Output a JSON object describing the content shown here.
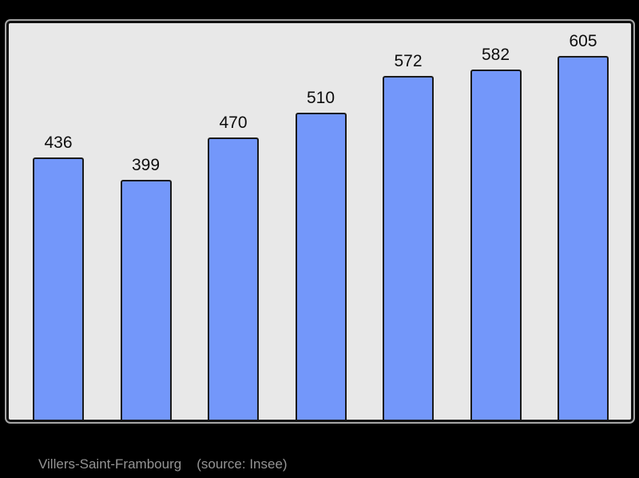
{
  "chart_data": {
    "type": "bar",
    "values": [
      436,
      399,
      470,
      510,
      572,
      582,
      605
    ],
    "data_labels": [
      "436",
      "399",
      "470",
      "510",
      "572",
      "582",
      "605"
    ],
    "title": "",
    "xlabel": "",
    "ylabel": "",
    "ylim": [
      0,
      660
    ],
    "grid": false,
    "legend": false,
    "layout_hints": {
      "bars_share_baseline": true,
      "labels_above_bars": true,
      "no_axis_tick_labels": true
    }
  },
  "caption": {
    "commune": "Villers-Saint-Frambourg",
    "source": "(source: Insee)"
  },
  "colors": {
    "page_background": "#000000",
    "panel_background": "#e8e8e8",
    "panel_border": "#121212",
    "panel_halo": "#ffffff",
    "bar_fill": "#7397fa",
    "bar_border": "#1a1a1a",
    "value_label_text": "#0d0d0d",
    "caption_text": "#949494"
  }
}
